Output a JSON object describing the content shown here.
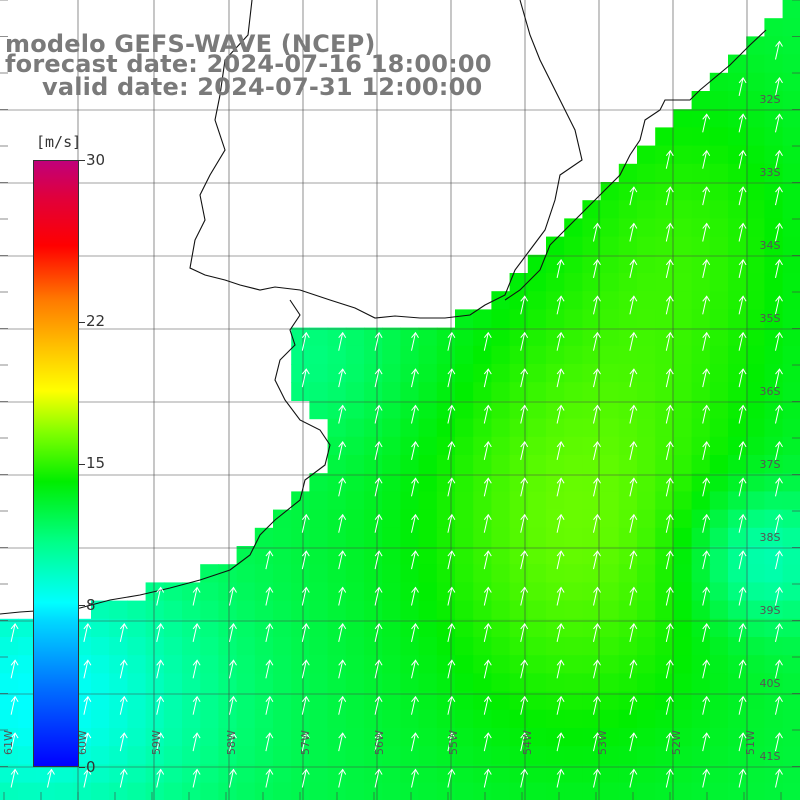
{
  "title": {
    "model": "modelo GEFS-WAVE (NCEP)",
    "forecast": "forecast date: 2024-07-16 18:00:00",
    "valid": "valid date: 2024-07-31 12:00:00"
  },
  "colorbar": {
    "unit": "[m/s]",
    "min": 0,
    "max": 30,
    "ticks": [
      "30",
      "22",
      "15",
      "8",
      "0"
    ],
    "tick_values": [
      30,
      22,
      15,
      8,
      0
    ],
    "palette": [
      "#0000ff",
      "#00ffff",
      "#00ff00",
      "#ffff00",
      "#ff8000",
      "#ff0000",
      "#c0007a"
    ]
  },
  "map": {
    "lat_labels": [
      "32S",
      "33S",
      "34S",
      "35S",
      "36S",
      "37S",
      "38S",
      "39S",
      "40S",
      "41S"
    ],
    "lon_labels": [
      "61W",
      "60W",
      "59W",
      "58W",
      "57W",
      "56W",
      "55W",
      "54W",
      "53W",
      "52W",
      "51W"
    ],
    "extent": {
      "lon_min": -61.5,
      "lon_max": -50.7,
      "lat_min": -41.3,
      "lat_max": -31.3
    },
    "wind_arrow_direction": "north-north-east",
    "field": "wind speed"
  }
}
